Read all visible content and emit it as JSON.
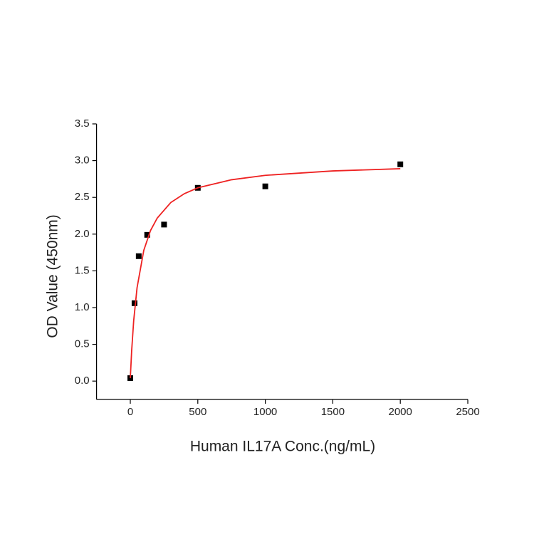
{
  "chart_data": {
    "type": "scatter",
    "x_label": "Human IL17A Conc.(ng/mL)",
    "y_label": "OD Value (450nm)",
    "xlim": [
      -250,
      2500
    ],
    "xticks": [
      0,
      500,
      1000,
      1500,
      2000,
      2500
    ],
    "ylim": [
      -0.25,
      3.5
    ],
    "yticks": [
      {
        "value": 0,
        "label": "0.0"
      },
      0.5,
      {
        "value": 1,
        "label": "1.0"
      },
      1.5,
      {
        "value": 2,
        "label": "2.0"
      },
      2.5,
      {
        "value": 3,
        "label": "3.0"
      },
      3.5
    ],
    "series": [
      {
        "style": "marker",
        "color": "#000000",
        "x": [
          0,
          31.25,
          62.5,
          125,
          250,
          500,
          1000,
          2000
        ],
        "values": [
          0.04,
          1.06,
          1.7,
          1.99,
          2.13,
          2.63,
          2.65,
          2.95
        ]
      },
      {
        "style": "line",
        "color": "#ee2222",
        "x": [
          0,
          10,
          25,
          50,
          100,
          150,
          200,
          300,
          400,
          500,
          750,
          1000,
          1500,
          2000
        ],
        "values": [
          0.04,
          0.41,
          0.82,
          1.27,
          1.78,
          2.05,
          2.22,
          2.43,
          2.55,
          2.63,
          2.74,
          2.8,
          2.86,
          2.89
        ]
      }
    ]
  }
}
